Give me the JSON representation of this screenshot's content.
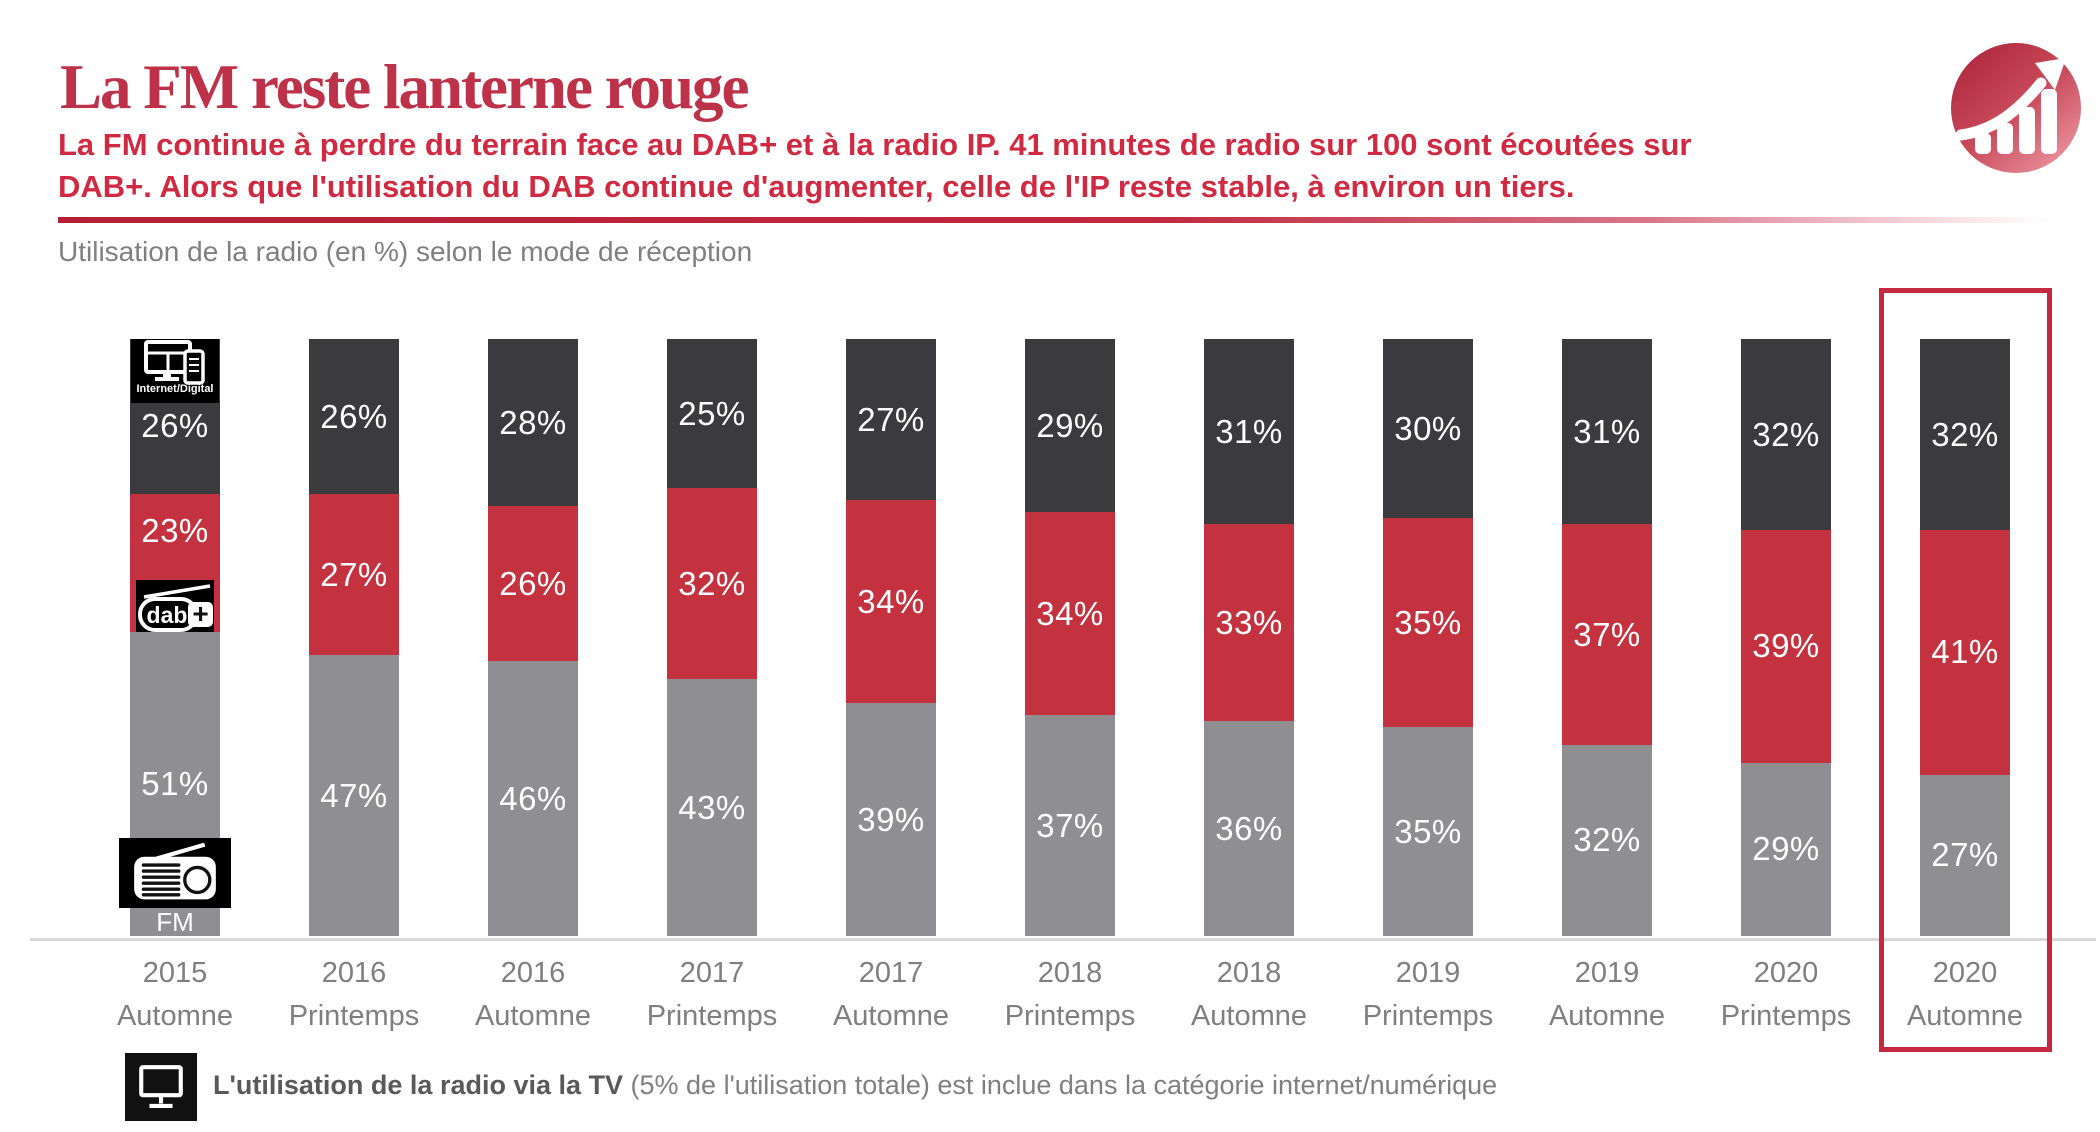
{
  "header": {
    "title": "La FM reste lanterne rouge",
    "subtitle_line1": "La FM continue à perdre du terrain face au DAB+ et à la radio IP. 41 minutes de radio sur 100 sont écoutées sur",
    "subtitle_line2": "DAB+. Alors que l'utilisation du DAB continue d'augmenter, celle de l'IP reste stable, à environ un tiers.",
    "accent_color": "#c22b42"
  },
  "chart_heading": "Utilisation de la radio (en %) selon le mode de réception",
  "chart_data": {
    "type": "bar",
    "stacked": true,
    "unit": "%",
    "title": "Utilisation de la radio (en %) selon le mode de réception",
    "categories": [
      {
        "year": "2015",
        "season": "Automne"
      },
      {
        "year": "2016",
        "season": "Printemps"
      },
      {
        "year": "2016",
        "season": "Automne"
      },
      {
        "year": "2017",
        "season": "Printemps"
      },
      {
        "year": "2017",
        "season": "Automne"
      },
      {
        "year": "2018",
        "season": "Printemps"
      },
      {
        "year": "2018",
        "season": "Automne"
      },
      {
        "year": "2019",
        "season": "Printemps"
      },
      {
        "year": "2019",
        "season": "Automne"
      },
      {
        "year": "2020",
        "season": "Printemps"
      },
      {
        "year": "2020",
        "season": "Automne"
      }
    ],
    "series": [
      {
        "name": "Internet/Digital",
        "position": "top",
        "color": "#3b3b3d",
        "values": [
          26,
          26,
          28,
          25,
          27,
          29,
          31,
          30,
          31,
          32,
          32
        ]
      },
      {
        "name": "DAB+",
        "position": "middle",
        "color": "#c43240",
        "values": [
          23,
          27,
          26,
          32,
          34,
          34,
          33,
          35,
          37,
          39,
          41
        ]
      },
      {
        "name": "FM",
        "position": "bottom",
        "color": "#8f8e90",
        "values": [
          51,
          47,
          46,
          43,
          39,
          37,
          36,
          35,
          32,
          29,
          27
        ]
      }
    ],
    "value_suffix": "%",
    "ylim": [
      0,
      100
    ],
    "grid": false,
    "legend_position": "inside-first-bar",
    "legend": {
      "internet_digital": "Internet/Digital",
      "dab": "dab",
      "dab_plus": "+",
      "fm": "FM"
    },
    "highlighted_category_index": 10,
    "highlight_color": "#c5293f"
  },
  "footer": {
    "note_bold": "L'utilisation de la radio via la TV",
    "note_rest": " (5% de l'utilisation totale) est inclue dans la catégorie internet/numérique"
  }
}
